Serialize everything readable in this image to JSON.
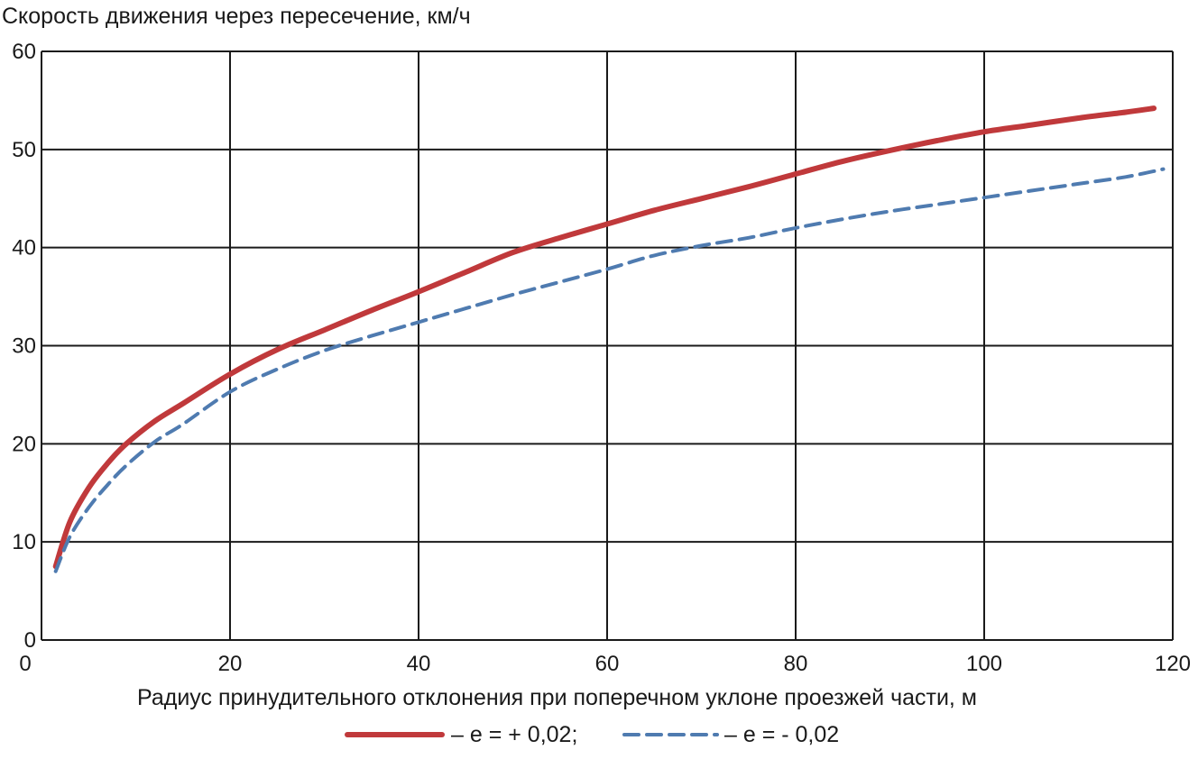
{
  "chart_data": {
    "type": "line",
    "title": "",
    "ylabel": "Скорость движения через пересечение, км/ч",
    "xlabel": "Радиус принудительного отклонения при  поперечном уклоне проезжей части, м",
    "xlim": [
      0,
      120
    ],
    "ylim": [
      0,
      60
    ],
    "x_ticks": [
      0,
      20,
      40,
      60,
      80,
      100,
      120
    ],
    "y_ticks": [
      0,
      10,
      20,
      30,
      40,
      50,
      60
    ],
    "grid": true,
    "legend_position": "bottom",
    "series": [
      {
        "name": "– е = + 0,02;",
        "color": "#c0393b",
        "style": "solid",
        "x": [
          1.5,
          3,
          5,
          7,
          9,
          12,
          15,
          20,
          25,
          30,
          35,
          40,
          45,
          50,
          55,
          60,
          65,
          70,
          75,
          80,
          85,
          90,
          95,
          100,
          105,
          110,
          115,
          118
        ],
        "y": [
          7.5,
          12,
          15.5,
          18,
          20,
          22.3,
          24.1,
          27.1,
          29.6,
          31.6,
          33.6,
          35.5,
          37.5,
          39.5,
          41,
          42.4,
          43.8,
          45,
          46.2,
          47.5,
          48.8,
          49.9,
          50.9,
          51.8,
          52.5,
          53.2,
          53.8,
          54.2
        ]
      },
      {
        "name": "– е = - 0,02",
        "color": "#4f7bb0",
        "style": "dashed",
        "x": [
          1.5,
          3,
          5,
          7,
          9,
          12,
          15,
          20,
          25,
          30,
          35,
          40,
          45,
          50,
          55,
          60,
          65,
          70,
          75,
          80,
          85,
          90,
          95,
          100,
          105,
          110,
          115,
          119
        ],
        "y": [
          7,
          10.5,
          13.5,
          15.8,
          17.8,
          20.2,
          22,
          25.3,
          27.6,
          29.5,
          31,
          32.4,
          33.8,
          35.2,
          36.5,
          37.8,
          39.2,
          40.2,
          41,
          42,
          42.9,
          43.7,
          44.4,
          45.1,
          45.8,
          46.5,
          47.2,
          48
        ]
      }
    ]
  }
}
